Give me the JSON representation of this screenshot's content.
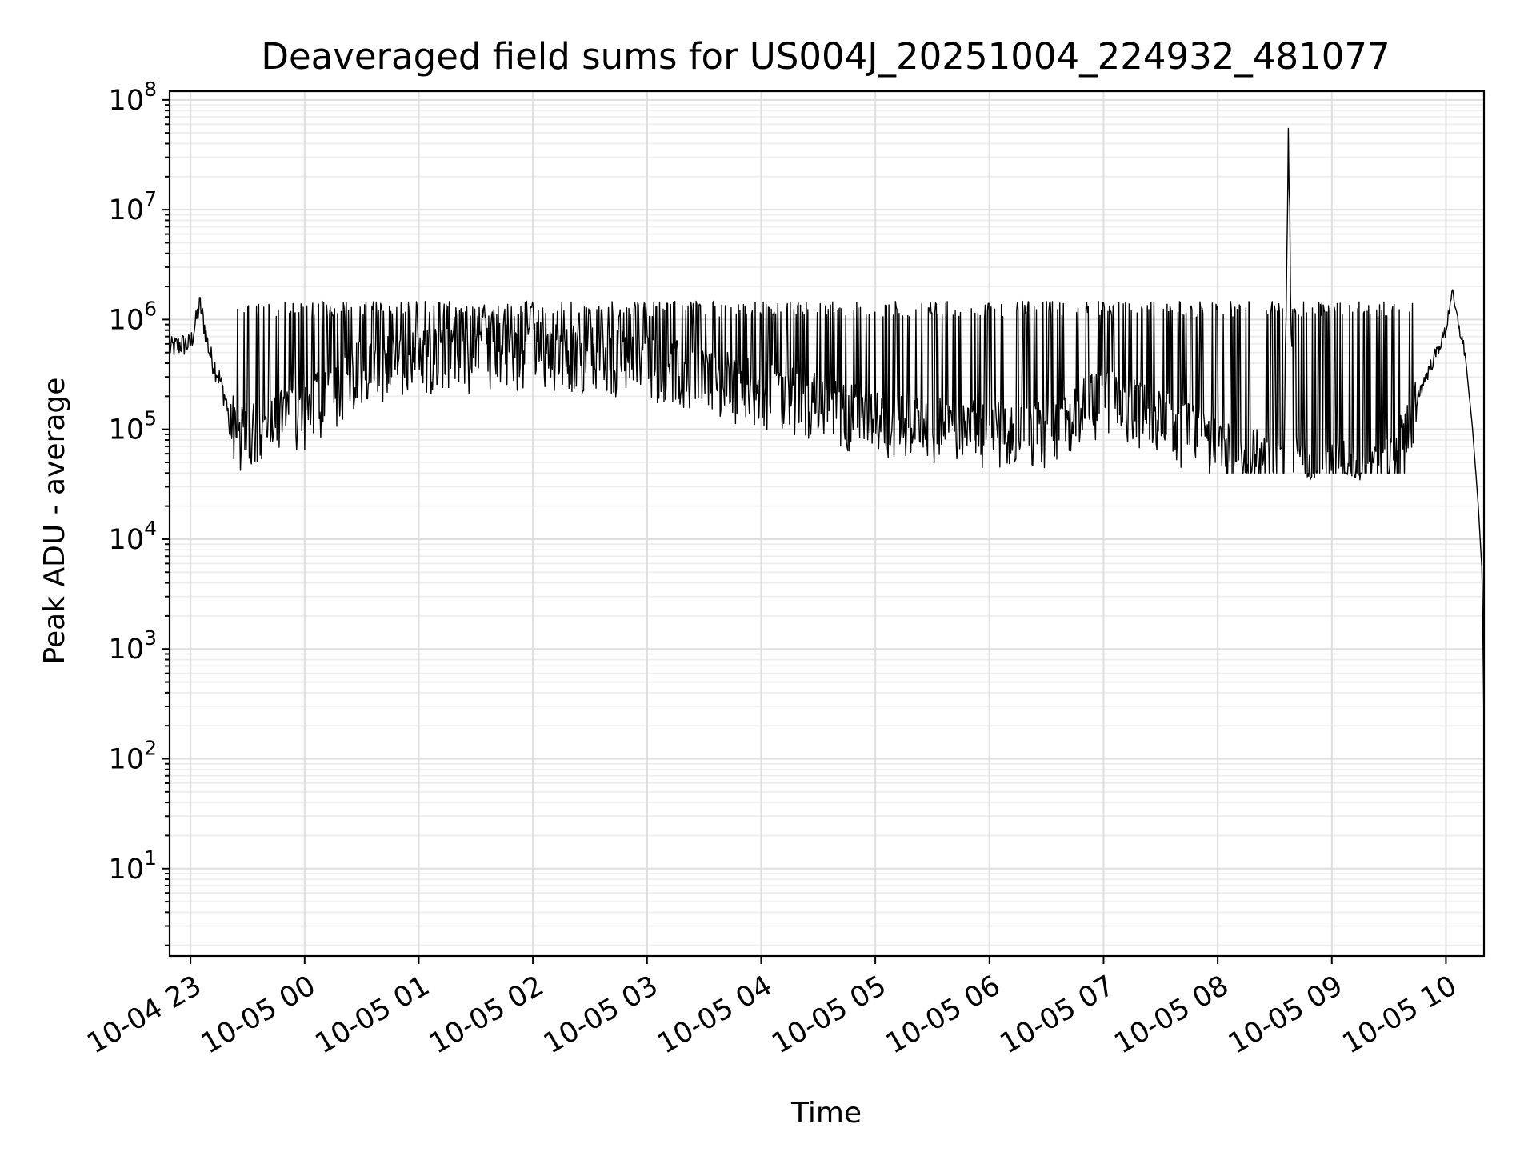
{
  "chart_data": {
    "type": "line",
    "title": "Deaveraged field sums for US004J_20251004_224932_481077",
    "xlabel": "Time",
    "ylabel": "Peak ADU - average",
    "yscale": "log",
    "ylim": [
      1.6,
      120000000
    ],
    "xlim": [
      "2025-10-04 22:49",
      "2025-10-05 10:20"
    ],
    "grid": "on (major and minor)",
    "line_color": "#000000",
    "x_tick_labels": [
      "10-04 23",
      "10-05 00",
      "10-05 01",
      "10-05 02",
      "10-05 03",
      "10-05 04",
      "10-05 05",
      "10-05 06",
      "10-05 07",
      "10-05 08",
      "10-05 09",
      "10-05 10"
    ],
    "x_ticks": [
      "2025-10-04 23:00",
      "2025-10-05 00:00",
      "2025-10-05 01:00",
      "2025-10-05 02:00",
      "2025-10-05 03:00",
      "2025-10-05 04:00",
      "2025-10-05 05:00",
      "2025-10-05 06:00",
      "2025-10-05 07:00",
      "2025-10-05 08:00",
      "2025-10-05 09:00",
      "2025-10-05 10:00"
    ],
    "y_ticks": [
      {
        "value": 10,
        "base": "10",
        "exp": "1"
      },
      {
        "value": 100,
        "base": "10",
        "exp": "2"
      },
      {
        "value": 1000,
        "base": "10",
        "exp": "3"
      },
      {
        "value": 10000,
        "base": "10",
        "exp": "4"
      },
      {
        "value": 100000,
        "base": "10",
        "exp": "5"
      },
      {
        "value": 1000000,
        "base": "10",
        "exp": "6"
      },
      {
        "value": 10000000,
        "base": "10",
        "exp": "7"
      },
      {
        "value": 100000000,
        "base": "10",
        "exp": "8"
      }
    ],
    "series": [
      {
        "color": "#000000",
        "x": [
          "2025-10-04 22:49",
          "2025-10-04 22:55",
          "2025-10-04 23:00",
          "2025-10-04 23:05",
          "2025-10-04 23:10",
          "2025-10-04 23:15",
          "2025-10-04 23:20",
          "2025-10-04 23:25",
          "2025-10-04 23:30",
          "2025-10-04 23:45",
          "2025-10-05 00:00",
          "2025-10-05 00:30",
          "2025-10-05 01:00",
          "2025-10-05 01:30",
          "2025-10-05 02:00",
          "2025-10-05 02:30",
          "2025-10-05 03:00",
          "2025-10-05 03:30",
          "2025-10-05 04:00",
          "2025-10-05 04:30",
          "2025-10-05 05:00",
          "2025-10-05 05:30",
          "2025-10-05 06:00",
          "2025-10-05 06:30",
          "2025-10-05 07:00",
          "2025-10-05 07:30",
          "2025-10-05 08:00",
          "2025-10-05 08:30",
          "2025-10-05 08:35",
          "2025-10-05 08:37",
          "2025-10-05 08:40",
          "2025-10-05 09:00",
          "2025-10-05 09:15",
          "2025-10-05 09:30",
          "2025-10-05 09:45",
          "2025-10-05 10:00",
          "2025-10-05 10:03",
          "2025-10-05 10:06",
          "2025-10-05 10:10",
          "2025-10-05 10:14",
          "2025-10-05 10:17",
          "2025-10-05 10:19",
          "2025-10-05 10:20"
        ],
        "values": [
          550000,
          600000,
          600000,
          1400000,
          500000,
          300000,
          150000,
          120000,
          120000,
          170000,
          180000,
          450000,
          550000,
          600000,
          650000,
          600000,
          500000,
          380000,
          280000,
          220000,
          150000,
          130000,
          120000,
          120000,
          250000,
          150000,
          90000,
          65000,
          60000,
          55000000,
          60000,
          55000,
          50000,
          55000,
          200000,
          800000,
          1800000,
          1000000,
          500000,
          100000,
          20000,
          5000,
          200
        ],
        "spike_max": 1400000,
        "trough_min": 40000
      }
    ]
  }
}
